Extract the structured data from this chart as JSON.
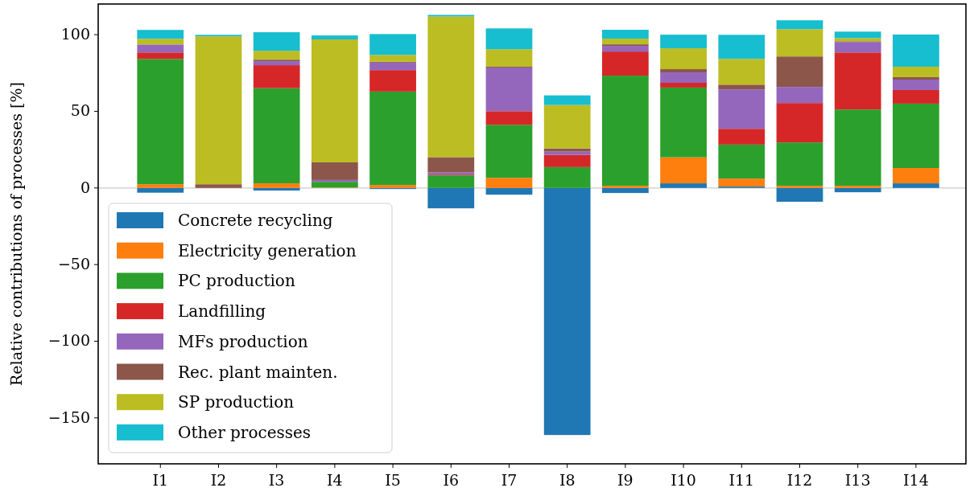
{
  "chart_data": {
    "type": "bar",
    "stacked": true,
    "ylabel": "Relative contributions of processes [%]",
    "categories": [
      "I1",
      "I2",
      "I3",
      "I4",
      "I5",
      "I6",
      "I7",
      "I8",
      "I9",
      "I10",
      "I11",
      "I12",
      "I13",
      "I14"
    ],
    "series": [
      {
        "name": "Concrete recycling",
        "color": "#1f77b4",
        "values": [
          -3.1,
          null,
          -1.7,
          null,
          -0.7,
          -13.3,
          -4.4,
          -161.2,
          -3.3,
          3.0,
          0.9,
          -9.0,
          -2.8,
          3.0
        ]
      },
      {
        "name": "Electricity generation",
        "color": "#ff7f0e",
        "values": [
          2.4,
          0,
          3.0,
          0.3,
          1.9,
          0,
          6.6,
          0,
          1.4,
          17.0,
          5.2,
          1.4,
          1.4,
          10.0
        ]
      },
      {
        "name": "PC production",
        "color": "#2ca02c",
        "values": [
          81.8,
          0,
          62.1,
          3.7,
          61.0,
          8.2,
          34.6,
          13.6,
          71.9,
          45.5,
          22.2,
          28.3,
          49.8,
          42.0
        ]
      },
      {
        "name": "Landfilling",
        "color": "#d62728",
        "values": [
          4.2,
          0,
          15.0,
          null,
          14.0,
          0.5,
          8.9,
          8.0,
          15.7,
          3.1,
          10.3,
          25.7,
          37.2,
          8.9
        ]
      },
      {
        "name": "MFs production",
        "color": "#9467bd",
        "values": [
          5.2,
          0,
          2.6,
          1.2,
          4.9,
          1.4,
          28.5,
          2.1,
          3.7,
          6.8,
          25.7,
          10.5,
          6.8,
          6.8
        ]
      },
      {
        "name": "Rec. plant mainten.",
        "color": "#8c564b",
        "values": [
          0,
          2.4,
          1.0,
          11.5,
          0.5,
          10.0,
          0.5,
          2.1,
          1.0,
          2.1,
          3.1,
          19.9,
          0.5,
          1.6
        ]
      },
      {
        "name": "SP production",
        "color": "#bcbd22",
        "values": [
          3.7,
          96.5,
          5.8,
          80.2,
          4.5,
          91.8,
          11.4,
          28.3,
          3.7,
          13.6,
          16.8,
          17.8,
          2.1,
          6.8
        ]
      },
      {
        "name": "Other processes",
        "color": "#17becf",
        "values": [
          5.8,
          1.0,
          12.1,
          2.6,
          13.6,
          1.0,
          13.6,
          6.3,
          5.8,
          8.9,
          15.7,
          5.8,
          4.2,
          21.0
        ]
      }
    ],
    "ylim": [
      -180,
      120
    ],
    "yticks": [
      -150,
      -100,
      -50,
      0,
      50,
      100
    ],
    "ref_lines": [
      {
        "axis": "y",
        "value": 0,
        "color": "#cccccc"
      }
    ],
    "legend": "bottom left",
    "grid": false
  }
}
